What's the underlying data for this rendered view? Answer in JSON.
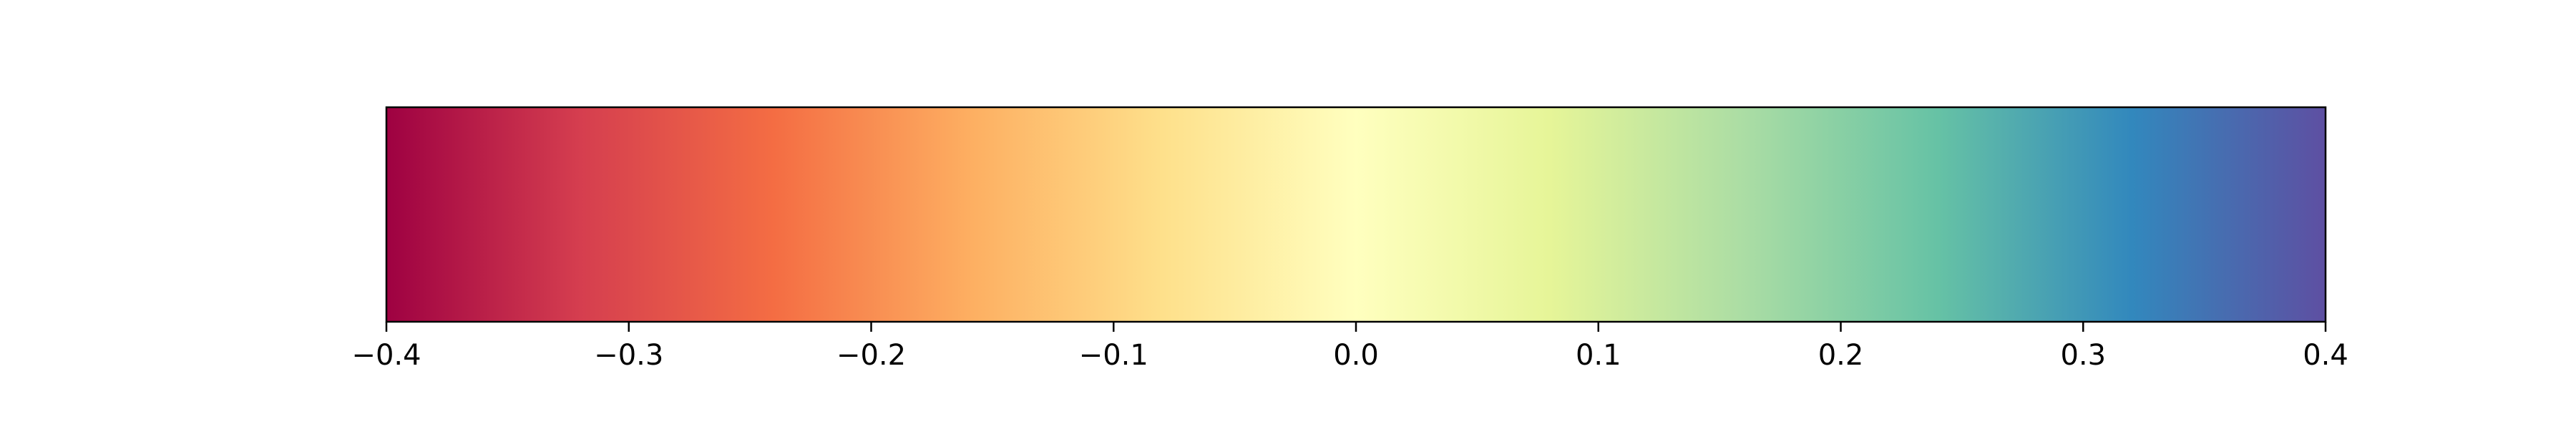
{
  "chart_data": {
    "type": "colorbar",
    "colormap": "Spectral",
    "orientation": "horizontal",
    "range": [
      -0.4,
      0.4
    ],
    "ticks": [
      -0.4,
      -0.3,
      -0.2,
      -0.1,
      0.0,
      0.1,
      0.2,
      0.3,
      0.4
    ],
    "tick_labels": [
      "−0.4",
      "−0.3",
      "−0.2",
      "−0.1",
      "0.0",
      "0.1",
      "0.2",
      "0.3",
      "0.4"
    ],
    "colors": [
      "#9e0142",
      "#d53e4f",
      "#f46d43",
      "#fdae61",
      "#fee08b",
      "#ffffbf",
      "#e6f598",
      "#abdda4",
      "#66c2a5",
      "#3288bd",
      "#5e4fa2"
    ],
    "title": "",
    "xlabel": "",
    "ylabel": ""
  }
}
